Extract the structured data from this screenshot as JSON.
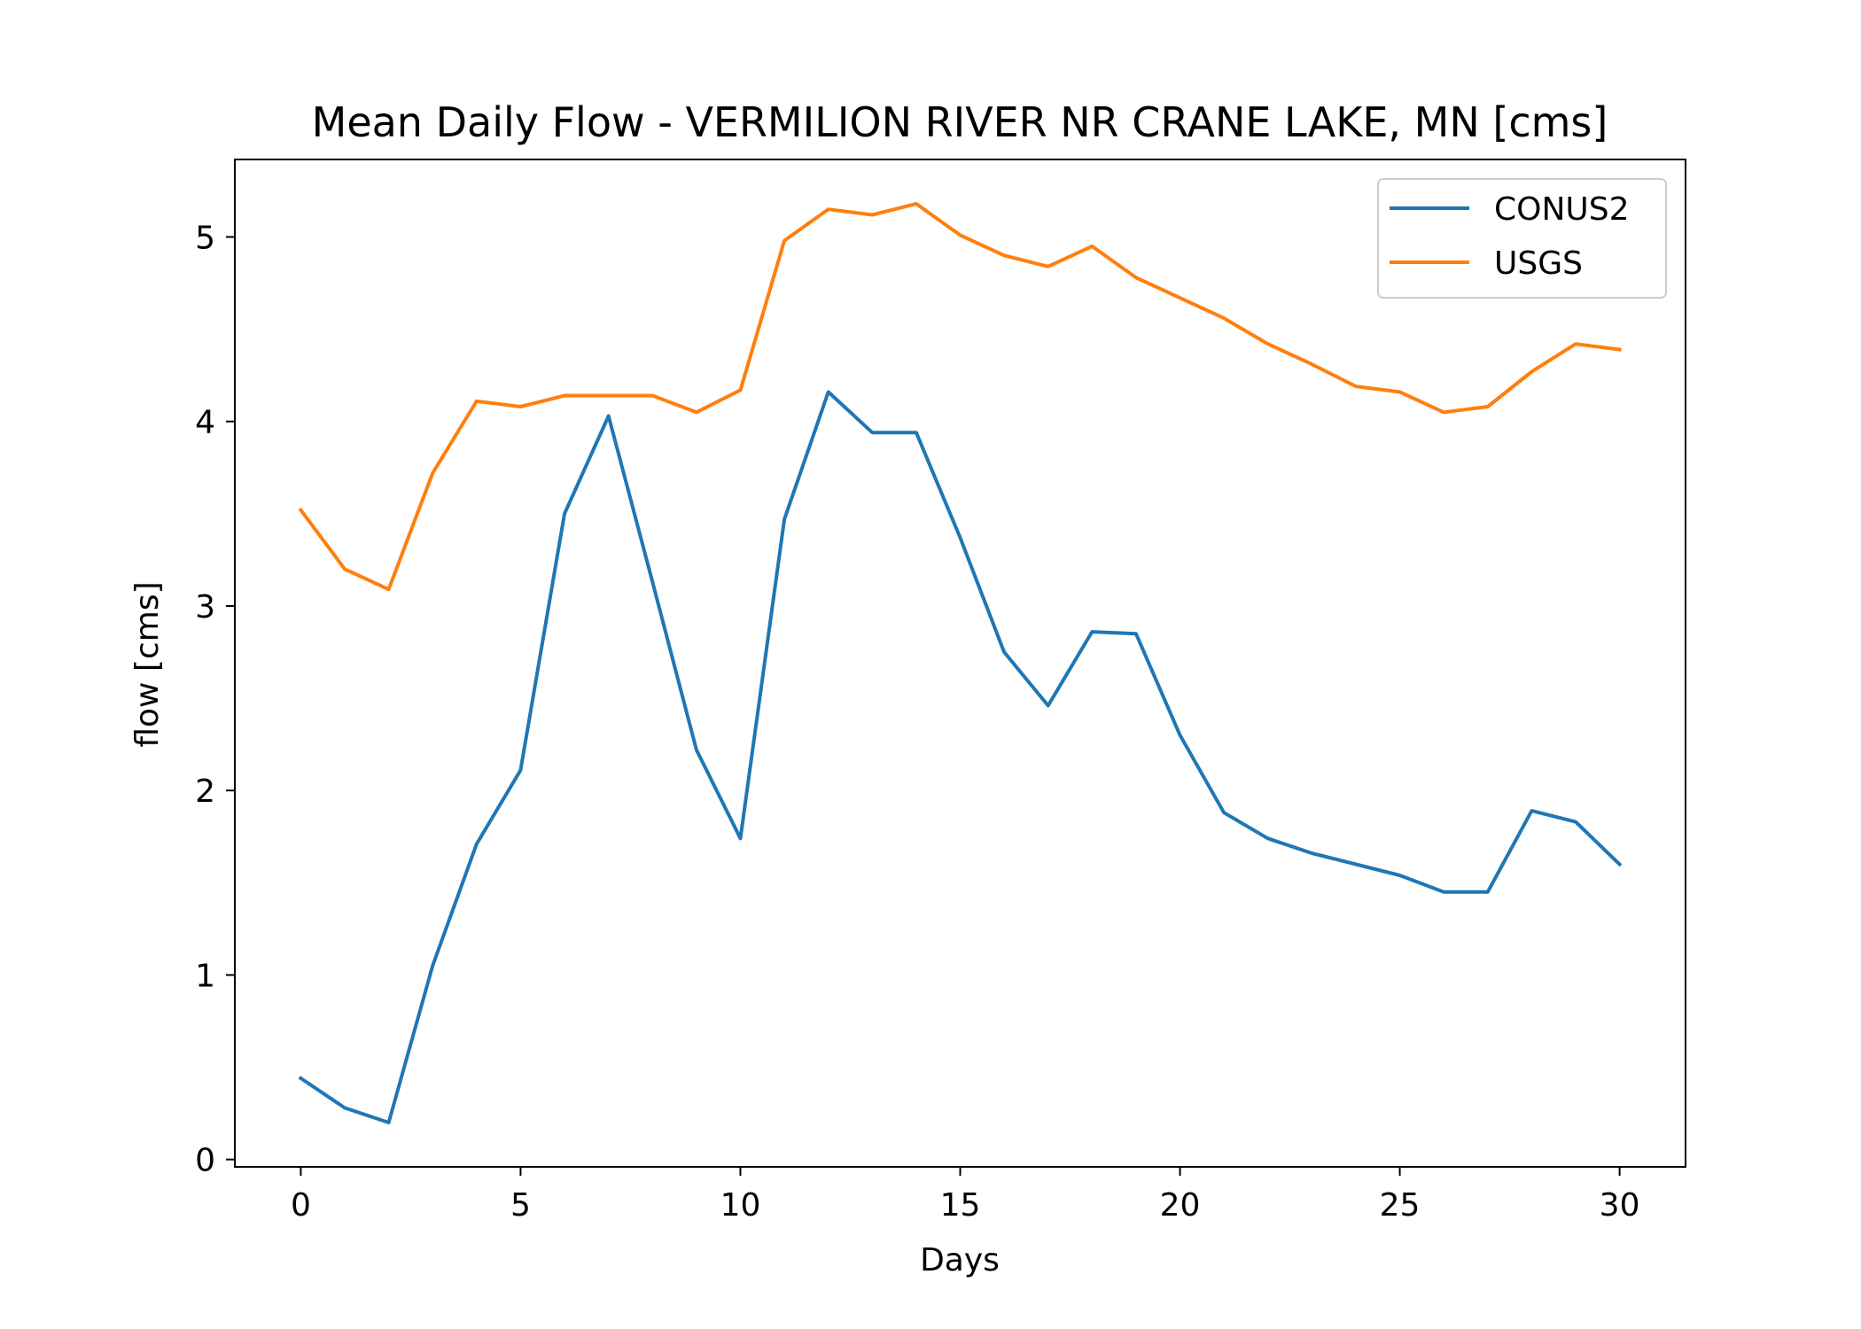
{
  "chart_data": {
    "type": "line",
    "title": "Mean Daily Flow - VERMILION RIVER NR CRANE LAKE, MN [cms]",
    "xlabel": "Days",
    "ylabel": "flow [cms]",
    "xlim": [
      -1.5,
      31.5
    ],
    "ylim": [
      -0.04,
      5.42
    ],
    "xticks": [
      0,
      5,
      10,
      15,
      20,
      25,
      30
    ],
    "yticks": [
      0,
      1,
      2,
      3,
      4,
      5
    ],
    "grid": false,
    "legend_position": "top-right",
    "x": [
      0,
      1,
      2,
      3,
      4,
      5,
      6,
      7,
      8,
      9,
      10,
      11,
      12,
      13,
      14,
      15,
      16,
      17,
      18,
      19,
      20,
      21,
      22,
      23,
      24,
      25,
      26,
      27,
      28,
      29,
      30
    ],
    "series": [
      {
        "name": "CONUS2",
        "color": "#1f77b4",
        "values": [
          0.44,
          0.28,
          0.2,
          1.05,
          1.71,
          2.11,
          3.5,
          4.03,
          3.13,
          2.22,
          1.74,
          3.47,
          4.16,
          3.94,
          3.94,
          3.37,
          2.75,
          2.46,
          2.86,
          2.85,
          2.3,
          1.88,
          1.74,
          1.66,
          1.6,
          1.54,
          1.45,
          1.45,
          1.89,
          1.83,
          1.6
        ]
      },
      {
        "name": "USGS",
        "color": "#ff7f0e",
        "values": [
          3.52,
          3.2,
          3.09,
          3.72,
          4.11,
          4.08,
          4.14,
          4.14,
          4.14,
          4.05,
          4.17,
          4.98,
          5.15,
          5.12,
          5.18,
          5.01,
          4.9,
          4.84,
          4.95,
          4.78,
          4.67,
          4.56,
          4.42,
          4.31,
          4.19,
          4.16,
          4.05,
          4.08,
          4.27,
          4.42,
          4.39
        ]
      }
    ]
  }
}
